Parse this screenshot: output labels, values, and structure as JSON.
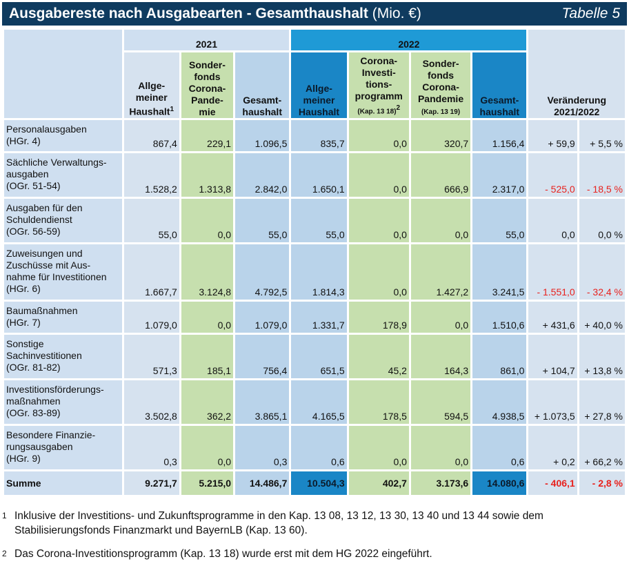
{
  "title": {
    "main": "Ausgabereste nach Ausgabearten - Gesamthaushalt",
    "unit": "(Mio. €)",
    "table_no": "Tabelle 5"
  },
  "header": {
    "year2021": "2021",
    "year2022": "2022",
    "cols": {
      "a21": [
        "Allge-",
        "meiner",
        "Haushalt"
      ],
      "a21_sup": "1",
      "s21": [
        "Sonder-",
        "fonds",
        "Corona-",
        "Pande-",
        "mie"
      ],
      "g21": [
        "Gesamt-",
        "haushalt"
      ],
      "a22": [
        "Allge-",
        "meiner",
        "Haushalt"
      ],
      "c22": [
        "Corona-",
        "Investi-",
        "tions-",
        "programm"
      ],
      "c22_small": "(Kap. 13 18)",
      "c22_sup": "2",
      "s22": [
        "Sonder-",
        "fonds",
        "Corona-",
        "Pandemie"
      ],
      "s22_small": "(Kap. 13 19)",
      "g22": [
        "Gesamt-",
        "haushalt"
      ],
      "change": [
        "Veränderung",
        "2021/2022"
      ]
    }
  },
  "rows": [
    {
      "label": [
        "Personalausgaben",
        "(HGr. 4)"
      ],
      "a21": "867,4",
      "s21": "229,1",
      "g21": "1.096,5",
      "a22": "835,7",
      "c22": "0,0",
      "s22": "320,7",
      "g22": "1.156,4",
      "abs": "+ 59,9",
      "pct": "+ 5,5 %",
      "neg": false
    },
    {
      "label": [
        "Sächliche Verwaltungs-",
        "ausgaben",
        "(OGr. 51-54)"
      ],
      "a21": "1.528,2",
      "s21": "1.313,8",
      "g21": "2.842,0",
      "a22": "1.650,1",
      "c22": "0,0",
      "s22": "666,9",
      "g22": "2.317,0",
      "abs": "- 525,0",
      "pct": "- 18,5 %",
      "neg": true
    },
    {
      "label": [
        "Ausgaben für den",
        "Schuldendienst",
        "(OGr. 56-59)"
      ],
      "a21": "55,0",
      "s21": "0,0",
      "g21": "55,0",
      "a22": "55,0",
      "c22": "0,0",
      "s22": "0,0",
      "g22": "55,0",
      "abs": "0,0",
      "pct": "0,0 %",
      "neg": false
    },
    {
      "label": [
        "Zuweisungen und",
        "Zuschüsse mit Aus-",
        "nahme für Investitionen",
        "(HGr. 6)"
      ],
      "a21": "1.667,7",
      "s21": "3.124,8",
      "g21": "4.792,5",
      "a22": "1.814,3",
      "c22": "0,0",
      "s22": "1.427,2",
      "g22": "3.241,5",
      "abs": "- 1.551,0",
      "pct": "- 32,4 %",
      "neg": true
    },
    {
      "label": [
        "Baumaßnahmen",
        "(HGr. 7)"
      ],
      "a21": "1.079,0",
      "s21": "0,0",
      "g21": "1.079,0",
      "a22": "1.331,7",
      "c22": "178,9",
      "s22": "0,0",
      "g22": "1.510,6",
      "abs": "+ 431,6",
      "pct": "+ 40,0 %",
      "neg": false
    },
    {
      "label": [
        "Sonstige",
        "Sachinvestitionen",
        "(OGr. 81-82)"
      ],
      "a21": "571,3",
      "s21": "185,1",
      "g21": "756,4",
      "a22": "651,5",
      "c22": "45,2",
      "s22": "164,3",
      "g22": "861,0",
      "abs": "+ 104,7",
      "pct": "+ 13,8 %",
      "neg": false
    },
    {
      "label": [
        "Investitionsförderungs-",
        "maßnahmen",
        "(OGr. 83-89)"
      ],
      "a21": "3.502,8",
      "s21": "362,2",
      "g21": "3.865,1",
      "a22": "4.165,5",
      "c22": "178,5",
      "s22": "594,5",
      "g22": "4.938,5",
      "abs": "+ 1.073,5",
      "pct": "+ 27,8 %",
      "neg": false
    },
    {
      "label": [
        "Besondere Finanzie-",
        "rungsausgaben",
        "(HGr. 9)"
      ],
      "a21": "0,3",
      "s21": "0,0",
      "g21": "0,3",
      "a22": "0,6",
      "c22": "0,0",
      "s22": "0,0",
      "g22": "0,6",
      "abs": "+ 0,2",
      "pct": "+ 66,2 %",
      "neg": false
    }
  ],
  "sum": {
    "label": "Summe",
    "a21": "9.271,7",
    "s21": "5.215,0",
    "g21": "14.486,7",
    "a22": "10.504,3",
    "c22": "402,7",
    "s22": "3.173,6",
    "g22": "14.080,6",
    "abs": "- 406,1",
    "pct": "- 2,8 %"
  },
  "footnotes": [
    {
      "mark": "1",
      "text": "Inklusive der Investitions- und Zukunftsprogramme in den Kap. 13 08, 13 12, 13 30, 13 40 und 13 44 sowie dem Stabilisierungsfonds Finanzmarkt und BayernLB (Kap. 13 60)."
    },
    {
      "mark": "2",
      "text": "Das Corona-Investitionsprogramm (Kap. 13 18) wurde erst mit dem HG 2022 eingeführt."
    }
  ],
  "colors": {
    "title_bg": "#0f3b5f",
    "green": "#c6dfae",
    "blue_light": "#d6e2ef",
    "blue_mid": "#b9d3ea",
    "blue_strong": "#1f9ad6",
    "negative": "#e8211d"
  }
}
